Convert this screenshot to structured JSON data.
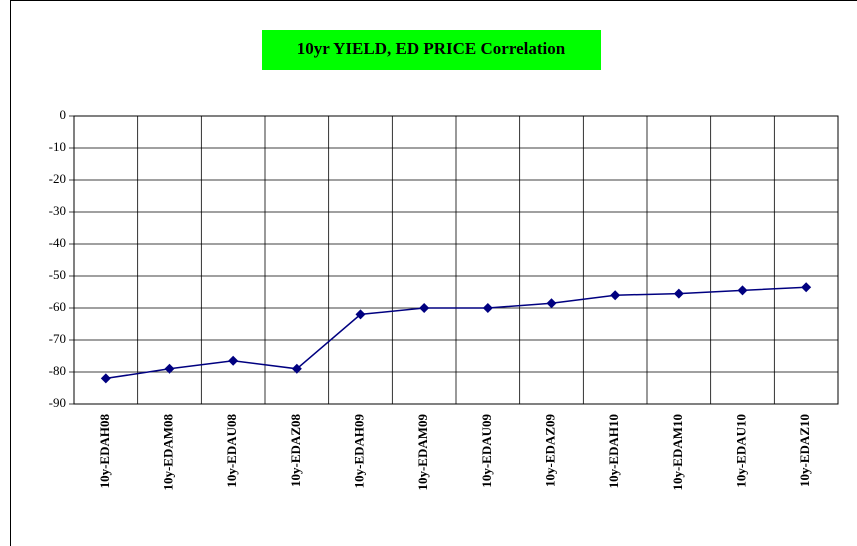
{
  "chart_data": {
    "type": "line",
    "title": "10yr YIELD, ED PRICE Correlation",
    "categories": [
      "10y-EDAH08",
      "10y-EDAM08",
      "10y-EDAU08",
      "10y-EDAZ08",
      "10y-EDAH09",
      "10y-EDAM09",
      "10y-EDAU09",
      "10y-EDAZ09",
      "10y-EDAH10",
      "10y-EDAM10",
      "10y-EDAU10",
      "10y-EDAZ10"
    ],
    "values": [
      -82,
      -79,
      -76.5,
      -79,
      -62,
      -60,
      -60,
      -58.5,
      -56,
      -55.5,
      -54.5,
      -53.5
    ],
    "color": "#000080",
    "ylim": [
      -90,
      0
    ],
    "yticks": [
      0,
      -10,
      -20,
      -30,
      -40,
      -50,
      -60,
      -70,
      -80,
      -90
    ],
    "grid": true
  }
}
